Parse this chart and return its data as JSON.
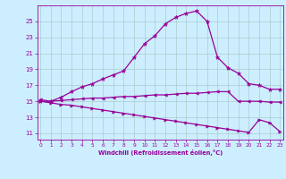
{
  "xlabel": "Windchill (Refroidissement éolien,°C)",
  "bg_color": "#cceeff",
  "grid_color": "#aacccc",
  "line_color": "#990099",
  "x_ticks": [
    0,
    1,
    2,
    3,
    4,
    5,
    6,
    7,
    8,
    9,
    10,
    11,
    12,
    13,
    14,
    15,
    16,
    17,
    18,
    19,
    20,
    21,
    22,
    23
  ],
  "y_ticks": [
    11,
    13,
    15,
    17,
    19,
    21,
    23,
    25
  ],
  "xlim": [
    -0.3,
    23.3
  ],
  "ylim": [
    10.2,
    27.0
  ],
  "line1_x": [
    0,
    1,
    2,
    3,
    4,
    5,
    6,
    7,
    8,
    9,
    10,
    11,
    12,
    13,
    14,
    15,
    16,
    17,
    18,
    19,
    20,
    21,
    22,
    23
  ],
  "line1_y": [
    15.0,
    15.0,
    15.5,
    16.2,
    16.8,
    17.2,
    17.8,
    18.3,
    18.8,
    20.5,
    22.2,
    23.2,
    24.7,
    25.5,
    26.0,
    26.3,
    25.0,
    20.5,
    19.2,
    18.5,
    17.2,
    17.0,
    16.5,
    16.5
  ],
  "line2_x": [
    0,
    1,
    2,
    3,
    4,
    5,
    6,
    7,
    8,
    9,
    10,
    11,
    12,
    13,
    14,
    15,
    16,
    17,
    18,
    19,
    20,
    21,
    22,
    23
  ],
  "line2_y": [
    15.2,
    15.0,
    15.1,
    15.2,
    15.3,
    15.4,
    15.4,
    15.5,
    15.6,
    15.6,
    15.7,
    15.8,
    15.8,
    15.9,
    16.0,
    16.0,
    16.1,
    16.2,
    16.2,
    15.0,
    15.0,
    15.0,
    14.9,
    14.9
  ],
  "line3_x": [
    0,
    1,
    2,
    3,
    4,
    5,
    6,
    7,
    8,
    9,
    10,
    11,
    12,
    13,
    14,
    15,
    16,
    17,
    18,
    19,
    20,
    21,
    22,
    23
  ],
  "line3_y": [
    15.0,
    14.8,
    14.6,
    14.5,
    14.3,
    14.1,
    13.9,
    13.7,
    13.5,
    13.3,
    13.1,
    12.9,
    12.7,
    12.5,
    12.3,
    12.1,
    11.9,
    11.7,
    11.5,
    11.3,
    11.1,
    12.7,
    12.3,
    11.2
  ]
}
